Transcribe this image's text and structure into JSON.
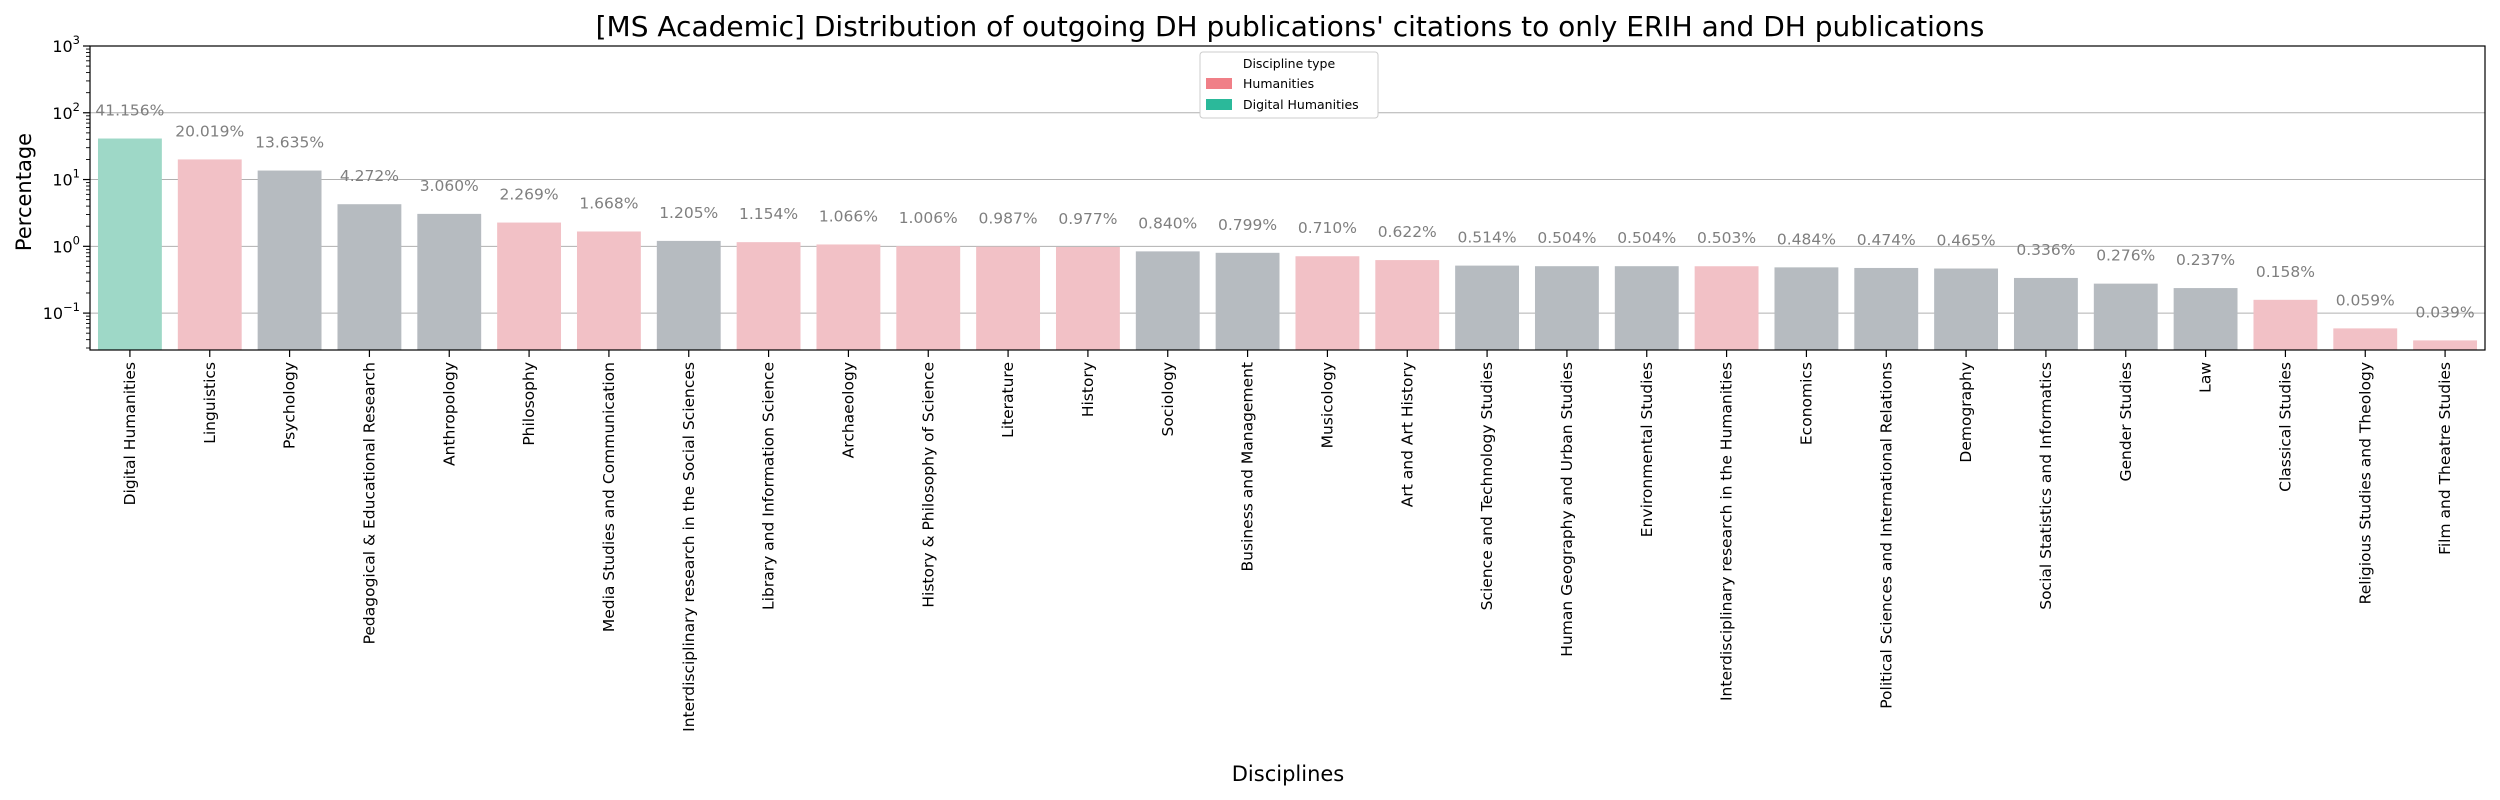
{
  "chart_data": {
    "type": "bar",
    "title": "[MS Academic] Distribution of outgoing DH publications' citations to only ERIH and DH publications",
    "xlabel": "Disciplines",
    "ylabel": "Percentage",
    "yscale": "log",
    "ylim": [
      0.028,
      1000
    ],
    "yticks": [
      {
        "value": 0.1,
        "base": "10",
        "exp": "−1"
      },
      {
        "value": 1,
        "base": "10",
        "exp": "0"
      },
      {
        "value": 10,
        "base": "10",
        "exp": "1"
      },
      {
        "value": 100,
        "base": "10",
        "exp": "2"
      },
      {
        "value": 1000,
        "base": "10",
        "exp": "3"
      }
    ],
    "grid": "horizontal",
    "legend": {
      "title": "Discipline type",
      "placement": "top-center",
      "entries": [
        {
          "label": "Humanities",
          "color": "#f07f87"
        },
        {
          "label": "Digital Humanities",
          "color": "#2bb99a"
        }
      ]
    },
    "colors": {
      "DH": "#9ed8c7",
      "H": "#f2c1c6",
      "SS": "#b6bbc0"
    },
    "categories": [
      "Digital Humanities",
      "Linguistics",
      "Psychology",
      "Pedagogical & Educational Research",
      "Anthropology",
      "Philosophy",
      "Media Studies and Communication",
      "Interdisciplinary research in the Social Sciences",
      "Library and Information Science",
      "Archaeology",
      "History & Philosophy of Science",
      "Literature",
      "History",
      "Sociology",
      "Business and Management",
      "Musicology",
      "Art and Art History",
      "Science and Technology Studies",
      "Human Geography and Urban Studies",
      "Environmental Studies",
      "Interdisciplinary research in the Humanities",
      "Economics",
      "Political Sciences and International Relations",
      "Demography",
      "Social Statistics and Informatics",
      "Gender Studies",
      "Law",
      "Classical Studies",
      "Religious Studies and Theology",
      "Film and Theatre Studies"
    ],
    "values": [
      41.156,
      20.019,
      13.635,
      4.272,
      3.06,
      2.269,
      1.668,
      1.205,
      1.154,
      1.066,
      1.006,
      0.987,
      0.977,
      0.84,
      0.799,
      0.71,
      0.622,
      0.514,
      0.504,
      0.504,
      0.503,
      0.484,
      0.474,
      0.465,
      0.336,
      0.276,
      0.237,
      0.158,
      0.059,
      0.039
    ],
    "data_labels": [
      "41.156%",
      "20.019%",
      "13.635%",
      "4.272%",
      "3.060%",
      "2.269%",
      "1.668%",
      "1.205%",
      "1.154%",
      "1.066%",
      "1.006%",
      "0.987%",
      "0.977%",
      "0.840%",
      "0.799%",
      "0.710%",
      "0.622%",
      "0.514%",
      "0.504%",
      "0.504%",
      "0.503%",
      "0.484%",
      "0.474%",
      "0.465%",
      "0.336%",
      "0.276%",
      "0.237%",
      "0.158%",
      "0.059%",
      "0.039%"
    ],
    "types": [
      "DH",
      "H",
      "SS",
      "SS",
      "SS",
      "H",
      "H",
      "SS",
      "H",
      "H",
      "H",
      "H",
      "H",
      "SS",
      "SS",
      "H",
      "H",
      "SS",
      "SS",
      "SS",
      "H",
      "SS",
      "SS",
      "SS",
      "SS",
      "SS",
      "SS",
      "H",
      "H",
      "H"
    ]
  }
}
